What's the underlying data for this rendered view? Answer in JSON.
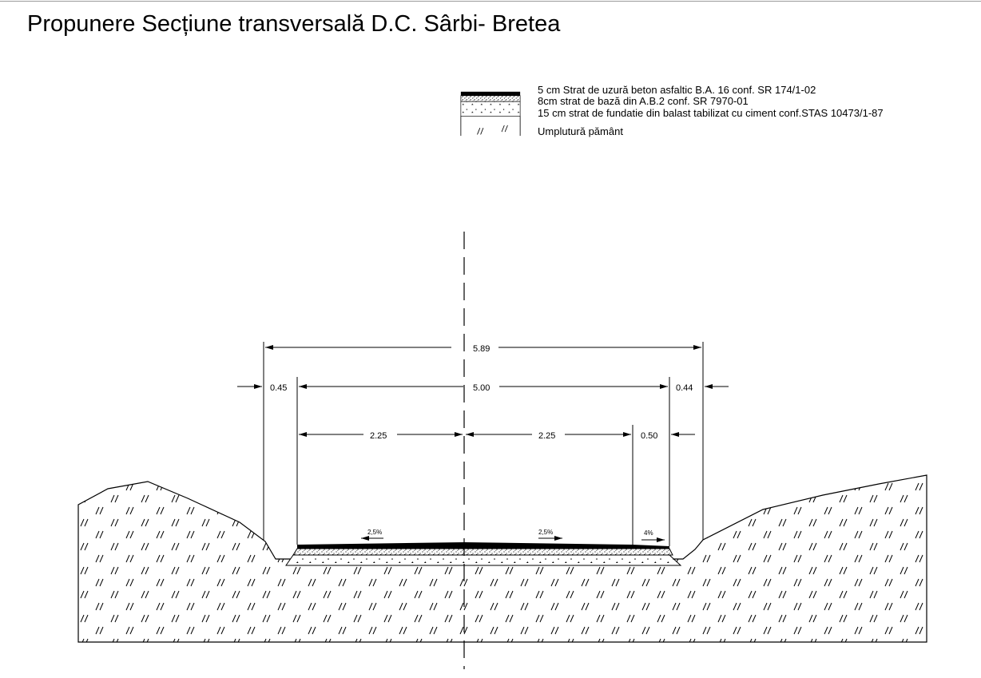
{
  "title": "Propunere Secțiune transversală D.C. Sârbi- Bretea",
  "legend": {
    "items": [
      {
        "label": "5 cm Strat de uzură beton asfaltic B.A. 16 conf. SR 174/1-02",
        "pattern": "solid-black"
      },
      {
        "label": "8cm strat de bază din A.B.2 conf. SR 7970-01",
        "pattern": "dense-dots"
      },
      {
        "label": "15 cm strat de fundatie din balast tabilizat cu ciment conf.STAS 10473/1-87",
        "pattern": "triangle-dots"
      },
      {
        "label": "Umplutură pământ",
        "pattern": "hatch"
      }
    ]
  },
  "dimensions": {
    "total_width": "5.89",
    "carriageway": "5.00",
    "left_shoulder": "0.45",
    "right_shoulder": "0.44",
    "left_lane": "2.25",
    "right_lane": "2.25",
    "right_strip": "0.50"
  },
  "slopes": {
    "left": "2,5%",
    "right": "2,5%",
    "edge": "4%"
  },
  "colors": {
    "ink": "#000000",
    "background": "#ffffff"
  }
}
